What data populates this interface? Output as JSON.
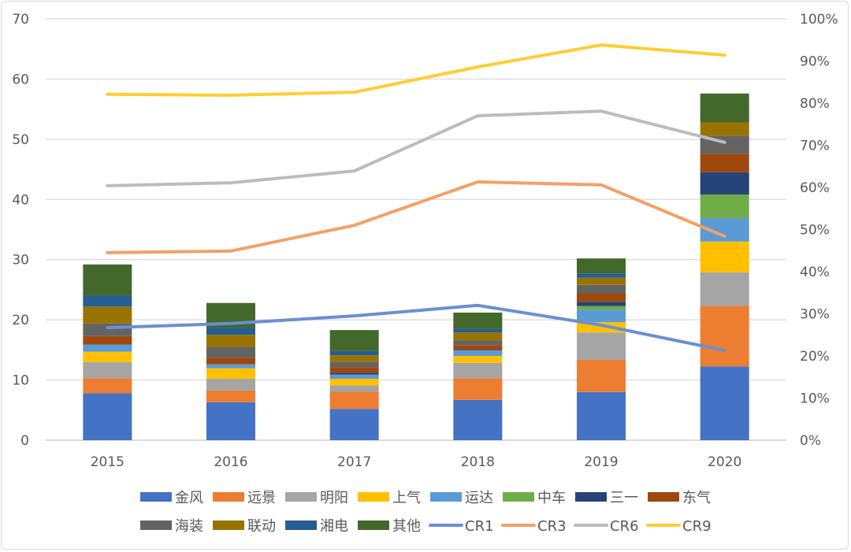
{
  "chart_data": {
    "type": "bar",
    "stacked": true,
    "categories": [
      "2015",
      "2016",
      "2017",
      "2018",
      "2019",
      "2020"
    ],
    "y_left": {
      "range": [
        0,
        70
      ],
      "ticks": [
        "0",
        "10",
        "20",
        "30",
        "40",
        "50",
        "60",
        "70"
      ]
    },
    "y_right": {
      "range": [
        0,
        100
      ],
      "unit": "%",
      "ticks": [
        "0%",
        "10%",
        "20%",
        "30%",
        "40%",
        "50%",
        "60%",
        "70%",
        "80%",
        "90%",
        "100%"
      ]
    },
    "grid": true,
    "legend_position": "bottom",
    "bar_series": [
      {
        "name": "金风",
        "color": "#4472c4",
        "values": [
          7.8,
          6.3,
          5.2,
          6.7,
          8.0,
          12.25
        ]
      },
      {
        "name": "远景",
        "color": "#ed7d31",
        "values": [
          2.5,
          1.95,
          2.85,
          3.6,
          5.35,
          10.05
        ]
      },
      {
        "name": "明阳",
        "color": "#a5a5a5",
        "values": [
          2.65,
          1.95,
          1.05,
          2.55,
          4.55,
          5.6
        ]
      },
      {
        "name": "上气",
        "color": "#ffc000",
        "values": [
          1.75,
          1.75,
          1.1,
          1.15,
          1.7,
          5.1
        ]
      },
      {
        "name": "运达",
        "color": "#5b9bd5",
        "values": [
          1.2,
          0.65,
          0.7,
          0.9,
          2.1,
          3.9
        ]
      },
      {
        "name": "中车",
        "color": "#70ad47",
        "values": [
          0,
          0,
          0,
          0,
          0.6,
          3.9
        ]
      },
      {
        "name": "三一",
        "color": "#264478",
        "values": [
          0,
          0,
          0.3,
          0.1,
          0.7,
          3.7
        ]
      },
      {
        "name": "东气",
        "color": "#9e480e",
        "values": [
          1.4,
          1.1,
          0.95,
          0.8,
          1.4,
          3.1
        ]
      },
      {
        "name": "海装",
        "color": "#636363",
        "values": [
          2.1,
          1.8,
          0.85,
          0.8,
          1.4,
          3.0
        ]
      },
      {
        "name": "联动",
        "color": "#997300",
        "values": [
          2.8,
          2.0,
          1.1,
          1.3,
          1.2,
          2.2
        ]
      },
      {
        "name": "湘电",
        "color": "#255e91",
        "values": [
          1.8,
          1.2,
          0.7,
          0.6,
          0.7,
          0
        ]
      },
      {
        "name": "其他",
        "color": "#43682b",
        "values": [
          5.2,
          4.1,
          3.5,
          2.7,
          2.5,
          4.8
        ]
      }
    ],
    "line_series": [
      {
        "name": "CR1",
        "color": "#6a8fd3",
        "axis": "right",
        "values": [
          26.7,
          27.7,
          29.5,
          32.0,
          27.3,
          21.3
        ]
      },
      {
        "name": "CR3",
        "color": "#f4a064",
        "axis": "right",
        "values": [
          44.5,
          44.9,
          51.0,
          61.3,
          60.6,
          48.4
        ]
      },
      {
        "name": "CR6",
        "color": "#bcbcbc",
        "axis": "right",
        "values": [
          60.4,
          61.1,
          63.9,
          77.0,
          78.1,
          70.7
        ]
      },
      {
        "name": "CR9",
        "color": "#ffcd33",
        "axis": "right",
        "values": [
          82.1,
          81.9,
          82.6,
          88.6,
          93.8,
          91.4
        ]
      }
    ]
  }
}
